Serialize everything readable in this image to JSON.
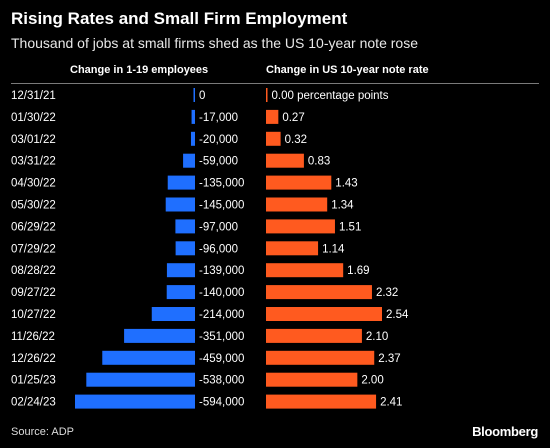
{
  "header": {
    "title": "Rising Rates and Small Firm Employment",
    "subtitle": "Thousand of jobs at small firms shed as the US 10-year note rose"
  },
  "footer": {
    "source": "Source: ADP",
    "brand": "Bloomberg"
  },
  "chart_data": {
    "type": "bar",
    "categories": [
      "12/31/21",
      "01/30/22",
      "03/01/22",
      "03/31/22",
      "04/30/22",
      "05/30/22",
      "06/29/22",
      "07/29/22",
      "08/28/22",
      "09/27/22",
      "10/27/22",
      "11/26/22",
      "12/26/22",
      "01/25/23",
      "02/24/23"
    ],
    "series": [
      {
        "name": "Change in 1-19 employees",
        "color": "#1f6fff",
        "values": [
          0,
          -17000,
          -20000,
          -59000,
          -135000,
          -145000,
          -97000,
          -96000,
          -139000,
          -140000,
          -214000,
          -351000,
          -459000,
          -538000,
          -594000
        ],
        "labels": [
          "0",
          "-17,000",
          "-20,000",
          "-59,000",
          "-135,000",
          "-145,000",
          "-97,000",
          "-96,000",
          "-139,000",
          "-140,000",
          "-214,000",
          "-351,000",
          "-459,000",
          "-538,000",
          "-594,000"
        ]
      },
      {
        "name": "Change in US 10-year note rate",
        "color": "#ff5a1f",
        "values": [
          0,
          0.27,
          0.32,
          0.83,
          1.43,
          1.34,
          1.51,
          1.14,
          1.69,
          2.32,
          2.54,
          2.1,
          2.37,
          2.0,
          2.41
        ],
        "labels": [
          "0.00 percentage points",
          "0.27",
          "0.32",
          "0.83",
          "1.43",
          "1.34",
          "1.51",
          "1.14",
          "1.69",
          "2.32",
          "2.54",
          "2.10",
          "2.37",
          "2.00",
          "2.41"
        ]
      }
    ]
  }
}
